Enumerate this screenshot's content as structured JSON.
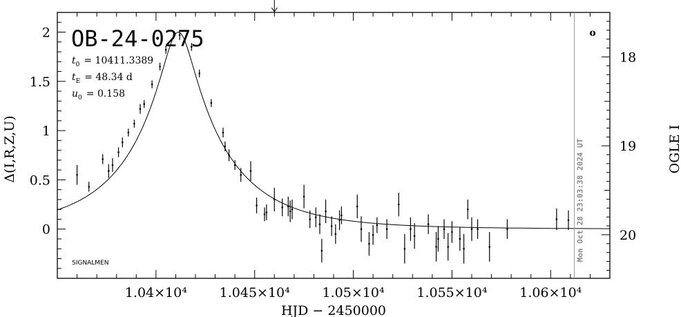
{
  "chart_data": {
    "type": "scatter",
    "title": "OB-24-0275",
    "xlabel": "HJD − 2450000",
    "ylabel": "Δ(I,R,Z,U)",
    "y2label": "OGLE I",
    "xlim": [
      10350,
      10630
    ],
    "ylim": [
      -0.5,
      2.2
    ],
    "y2lim": [
      20.49,
      17.5
    ],
    "x_ticks": [
      10400,
      10450,
      10500,
      10550,
      10600
    ],
    "x_tick_labels": [
      "1.04×10⁴",
      "1.045×10⁴",
      "1.05×10⁴",
      "1.055×10⁴",
      "1.06×10⁴"
    ],
    "y_ticks": [
      0,
      0.5,
      1,
      1.5,
      2
    ],
    "y_tick_labels": [
      "0",
      "0.5",
      "1",
      "1.5",
      "2"
    ],
    "y2_ticks": [
      18,
      19,
      20
    ],
    "y2_tick_labels": [
      "18",
      "19",
      "20"
    ],
    "params": {
      "t0_label": "t",
      "t0_sub": "0",
      "t0_value": "= 10411.3389",
      "tE_label": "t",
      "tE_sub": "E",
      "tE_value": "= 48.34 d",
      "u0_label": "u",
      "u0_sub": "0",
      "u0_value": "= 0.158"
    },
    "model": {
      "t0": 10411.3389,
      "tE": 48.34,
      "u0": 0.158,
      "amp": 0.55
    },
    "now_marker_x": 10612,
    "top_arrow_x": 10460,
    "timestamp": "Mon Oct 28 23:03:38 2024 UT",
    "footer_label": "SIGNALMEN",
    "corner_mark": "o",
    "points": [
      {
        "x": 10360,
        "y": 0.55,
        "e": 0.1
      },
      {
        "x": 10366,
        "y": 0.43,
        "e": 0.05
      },
      {
        "x": 10373,
        "y": 0.71,
        "e": 0.05
      },
      {
        "x": 10376,
        "y": 0.59,
        "e": 0.07
      },
      {
        "x": 10378,
        "y": 0.65,
        "e": 0.07
      },
      {
        "x": 10381,
        "y": 0.78,
        "e": 0.05
      },
      {
        "x": 10383,
        "y": 0.88,
        "e": 0.05
      },
      {
        "x": 10386,
        "y": 0.98,
        "e": 0.04
      },
      {
        "x": 10389,
        "y": 1.07,
        "e": 0.04
      },
      {
        "x": 10392,
        "y": 1.22,
        "e": 0.05
      },
      {
        "x": 10394,
        "y": 1.27,
        "e": 0.04
      },
      {
        "x": 10398,
        "y": 1.47,
        "e": 0.04
      },
      {
        "x": 10402,
        "y": 1.65,
        "e": 0.04
      },
      {
        "x": 10405,
        "y": 1.82,
        "e": 0.04
      },
      {
        "x": 10409,
        "y": 1.97,
        "e": 0.04
      },
      {
        "x": 10412,
        "y": 1.97,
        "e": 0.05
      },
      {
        "x": 10418,
        "y": 1.85,
        "e": 0.04
      },
      {
        "x": 10422,
        "y": 1.58,
        "e": 0.04
      },
      {
        "x": 10428,
        "y": 1.28,
        "e": 0.04
      },
      {
        "x": 10434,
        "y": 0.98,
        "e": 0.05
      },
      {
        "x": 10435,
        "y": 0.84,
        "e": 0.05
      },
      {
        "x": 10437,
        "y": 0.75,
        "e": 0.06
      },
      {
        "x": 10440,
        "y": 0.65,
        "e": 0.05
      },
      {
        "x": 10443,
        "y": 0.55,
        "e": 0.07
      },
      {
        "x": 10448,
        "y": 0.59,
        "e": 0.1
      },
      {
        "x": 10451,
        "y": 0.24,
        "e": 0.08
      },
      {
        "x": 10455,
        "y": 0.15,
        "e": 0.07
      },
      {
        "x": 10456,
        "y": 0.17,
        "e": 0.08
      },
      {
        "x": 10460,
        "y": 0.3,
        "e": 0.12
      },
      {
        "x": 10464,
        "y": 0.22,
        "e": 0.09
      },
      {
        "x": 10467,
        "y": 0.23,
        "e": 0.1
      },
      {
        "x": 10468,
        "y": 0.18,
        "e": 0.11
      },
      {
        "x": 10469,
        "y": 0.2,
        "e": 0.1
      },
      {
        "x": 10475,
        "y": 0.33,
        "e": 0.12
      },
      {
        "x": 10478,
        "y": 0.1,
        "e": 0.09
      },
      {
        "x": 10481,
        "y": 0.12,
        "e": 0.1
      },
      {
        "x": 10483,
        "y": 0.05,
        "e": 0.1
      },
      {
        "x": 10484,
        "y": -0.22,
        "e": 0.12
      },
      {
        "x": 10486,
        "y": 0.18,
        "e": 0.12
      },
      {
        "x": 10489,
        "y": 0.03,
        "e": 0.1
      },
      {
        "x": 10491,
        "y": -0.05,
        "e": 0.1
      },
      {
        "x": 10493,
        "y": 0.09,
        "e": 0.1
      },
      {
        "x": 10494,
        "y": 0.14,
        "e": 0.09
      },
      {
        "x": 10502,
        "y": 0.23,
        "e": 0.12
      },
      {
        "x": 10504,
        "y": 0.0,
        "e": 0.13
      },
      {
        "x": 10508,
        "y": -0.15,
        "e": 0.12
      },
      {
        "x": 10510,
        "y": -0.06,
        "e": 0.1
      },
      {
        "x": 10512,
        "y": 0.04,
        "e": 0.08
      },
      {
        "x": 10517,
        "y": 0.0,
        "e": 0.1
      },
      {
        "x": 10523,
        "y": 0.25,
        "e": 0.12
      },
      {
        "x": 10526,
        "y": -0.2,
        "e": 0.15
      },
      {
        "x": 10529,
        "y": 0.0,
        "e": 0.12
      },
      {
        "x": 10531,
        "y": -0.07,
        "e": 0.13
      },
      {
        "x": 10538,
        "y": 0.05,
        "e": 0.1
      },
      {
        "x": 10542,
        "y": -0.18,
        "e": 0.15
      },
      {
        "x": 10543,
        "y": -0.1,
        "e": 0.13
      },
      {
        "x": 10546,
        "y": 0.0,
        "e": 0.1
      },
      {
        "x": 10548,
        "y": -0.18,
        "e": 0.14
      },
      {
        "x": 10550,
        "y": -0.03,
        "e": 0.11
      },
      {
        "x": 10554,
        "y": -0.1,
        "e": 0.12
      },
      {
        "x": 10556,
        "y": -0.2,
        "e": 0.15
      },
      {
        "x": 10558,
        "y": 0.2,
        "e": 0.1
      },
      {
        "x": 10560,
        "y": 0.0,
        "e": 0.12
      },
      {
        "x": 10563,
        "y": 0.0,
        "e": 0.1
      },
      {
        "x": 10569,
        "y": -0.18,
        "e": 0.15
      },
      {
        "x": 10578,
        "y": 0.0,
        "e": 0.1
      },
      {
        "x": 10603,
        "y": 0.1,
        "e": 0.11
      },
      {
        "x": 10609,
        "y": 0.09,
        "e": 0.1
      }
    ]
  }
}
